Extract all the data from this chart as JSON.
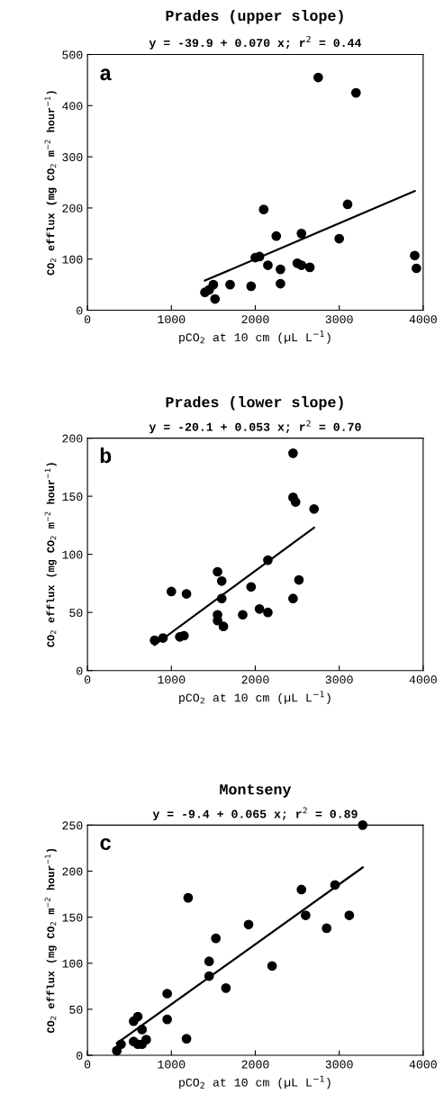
{
  "chart_data": [
    {
      "type": "scatter",
      "title": "Prades (upper slope)",
      "subtitle": "y = -39.9 + 0.070 x; r$^{2}$ = 0.44",
      "xlabel": "pCO$_{2}$ at 10 cm (µL L$^{−1}$)",
      "ylabel": "CO$_{2}$ efflux (mg CO$_{2}$ m$^{−2}$ hour$^{−1}$)",
      "annotations": [
        "a"
      ],
      "xlim": [
        0,
        4000
      ],
      "xticks": [
        0,
        1000,
        2000,
        3000,
        4000
      ],
      "ylim": [
        0,
        500
      ],
      "yticks": [
        0,
        100,
        200,
        300,
        400,
        500
      ],
      "grid": false,
      "legend": false,
      "series": [
        {
          "marker": "circle",
          "color": "#000000",
          "x": [
            1400,
            1450,
            1500,
            1520,
            1700,
            1950,
            2000,
            2050,
            2100,
            2150,
            2250,
            2300,
            2300,
            2500,
            2550,
            2550,
            2650,
            2750,
            3000,
            3100,
            3200,
            3900,
            3920
          ],
          "values": [
            35,
            40,
            50,
            22,
            50,
            47,
            103,
            105,
            197,
            88,
            145,
            52,
            80,
            92,
            150,
            88,
            84,
            455,
            140,
            207,
            425,
            107,
            82
          ]
        },
        {
          "type": "line",
          "marker": "none",
          "color": "#000000",
          "x": [
            1400,
            3900
          ],
          "values": [
            58,
            233
          ]
        }
      ]
    },
    {
      "type": "scatter",
      "title": "Prades (lower slope)",
      "subtitle": "y = -20.1 + 0.053 x; r$^{2}$ = 0.70",
      "xlabel": "pCO$_{2}$ at 10 cm (µL L$^{−1}$)",
      "ylabel": "CO$_{2}$ efflux (mg CO$_{2}$ m$^{−2}$ hour$^{−1}$)",
      "annotations": [
        "b"
      ],
      "xlim": [
        0,
        4000
      ],
      "xticks": [
        0,
        1000,
        2000,
        3000,
        4000
      ],
      "ylim": [
        0,
        200
      ],
      "yticks": [
        0,
        50,
        100,
        150,
        200
      ],
      "grid": false,
      "legend": false,
      "series": [
        {
          "marker": "circle",
          "color": "#000000",
          "x": [
            800,
            900,
            1000,
            1100,
            1150,
            1180,
            1550,
            1550,
            1550,
            1600,
            1600,
            1620,
            1850,
            1950,
            2050,
            2150,
            2150,
            2450,
            2450,
            2480,
            2450,
            2520,
            2700
          ],
          "values": [
            26,
            28,
            68,
            29,
            30,
            66,
            85,
            48,
            43,
            77,
            62,
            38,
            48,
            72,
            53,
            50,
            95,
            187,
            149,
            145,
            62,
            78,
            139
          ]
        },
        {
          "type": "line",
          "marker": "none",
          "color": "#000000",
          "x": [
            800,
            2700
          ],
          "values": [
            22,
            123
          ]
        }
      ]
    },
    {
      "type": "scatter",
      "title": "Montseny",
      "subtitle": "y = -9.4 + 0.065 x; r$^{2}$ = 0.89",
      "xlabel": "pCO$_{2}$ at 10 cm (µL L$^{−1}$)",
      "ylabel": "CO$_{2}$ efflux (mg CO$_{2}$ m$^{−2}$ hour$^{−1}$)",
      "annotations": [
        "c"
      ],
      "xlim": [
        0,
        4000
      ],
      "xticks": [
        0,
        1000,
        2000,
        3000,
        4000
      ],
      "ylim": [
        0,
        250
      ],
      "yticks": [
        0,
        50,
        100,
        150,
        200,
        250
      ],
      "grid": false,
      "legend": false,
      "series": [
        {
          "marker": "circle",
          "color": "#000000",
          "x": [
            350,
            400,
            550,
            550,
            600,
            600,
            620,
            650,
            650,
            700,
            950,
            950,
            1200,
            1180,
            1450,
            1450,
            1530,
            1650,
            1920,
            2200,
            2550,
            2600,
            2850,
            2950,
            3120,
            3280
          ],
          "values": [
            5,
            12,
            37,
            15,
            42,
            12,
            null,
            28,
            12,
            17,
            67,
            39,
            171,
            18,
            102,
            86,
            127,
            73,
            142,
            97,
            180,
            152,
            138,
            185,
            152,
            250
          ]
        },
        {
          "type": "line",
          "marker": "none",
          "color": "#000000",
          "x": [
            350,
            3280
          ],
          "values": [
            13,
            204
          ]
        }
      ]
    }
  ]
}
